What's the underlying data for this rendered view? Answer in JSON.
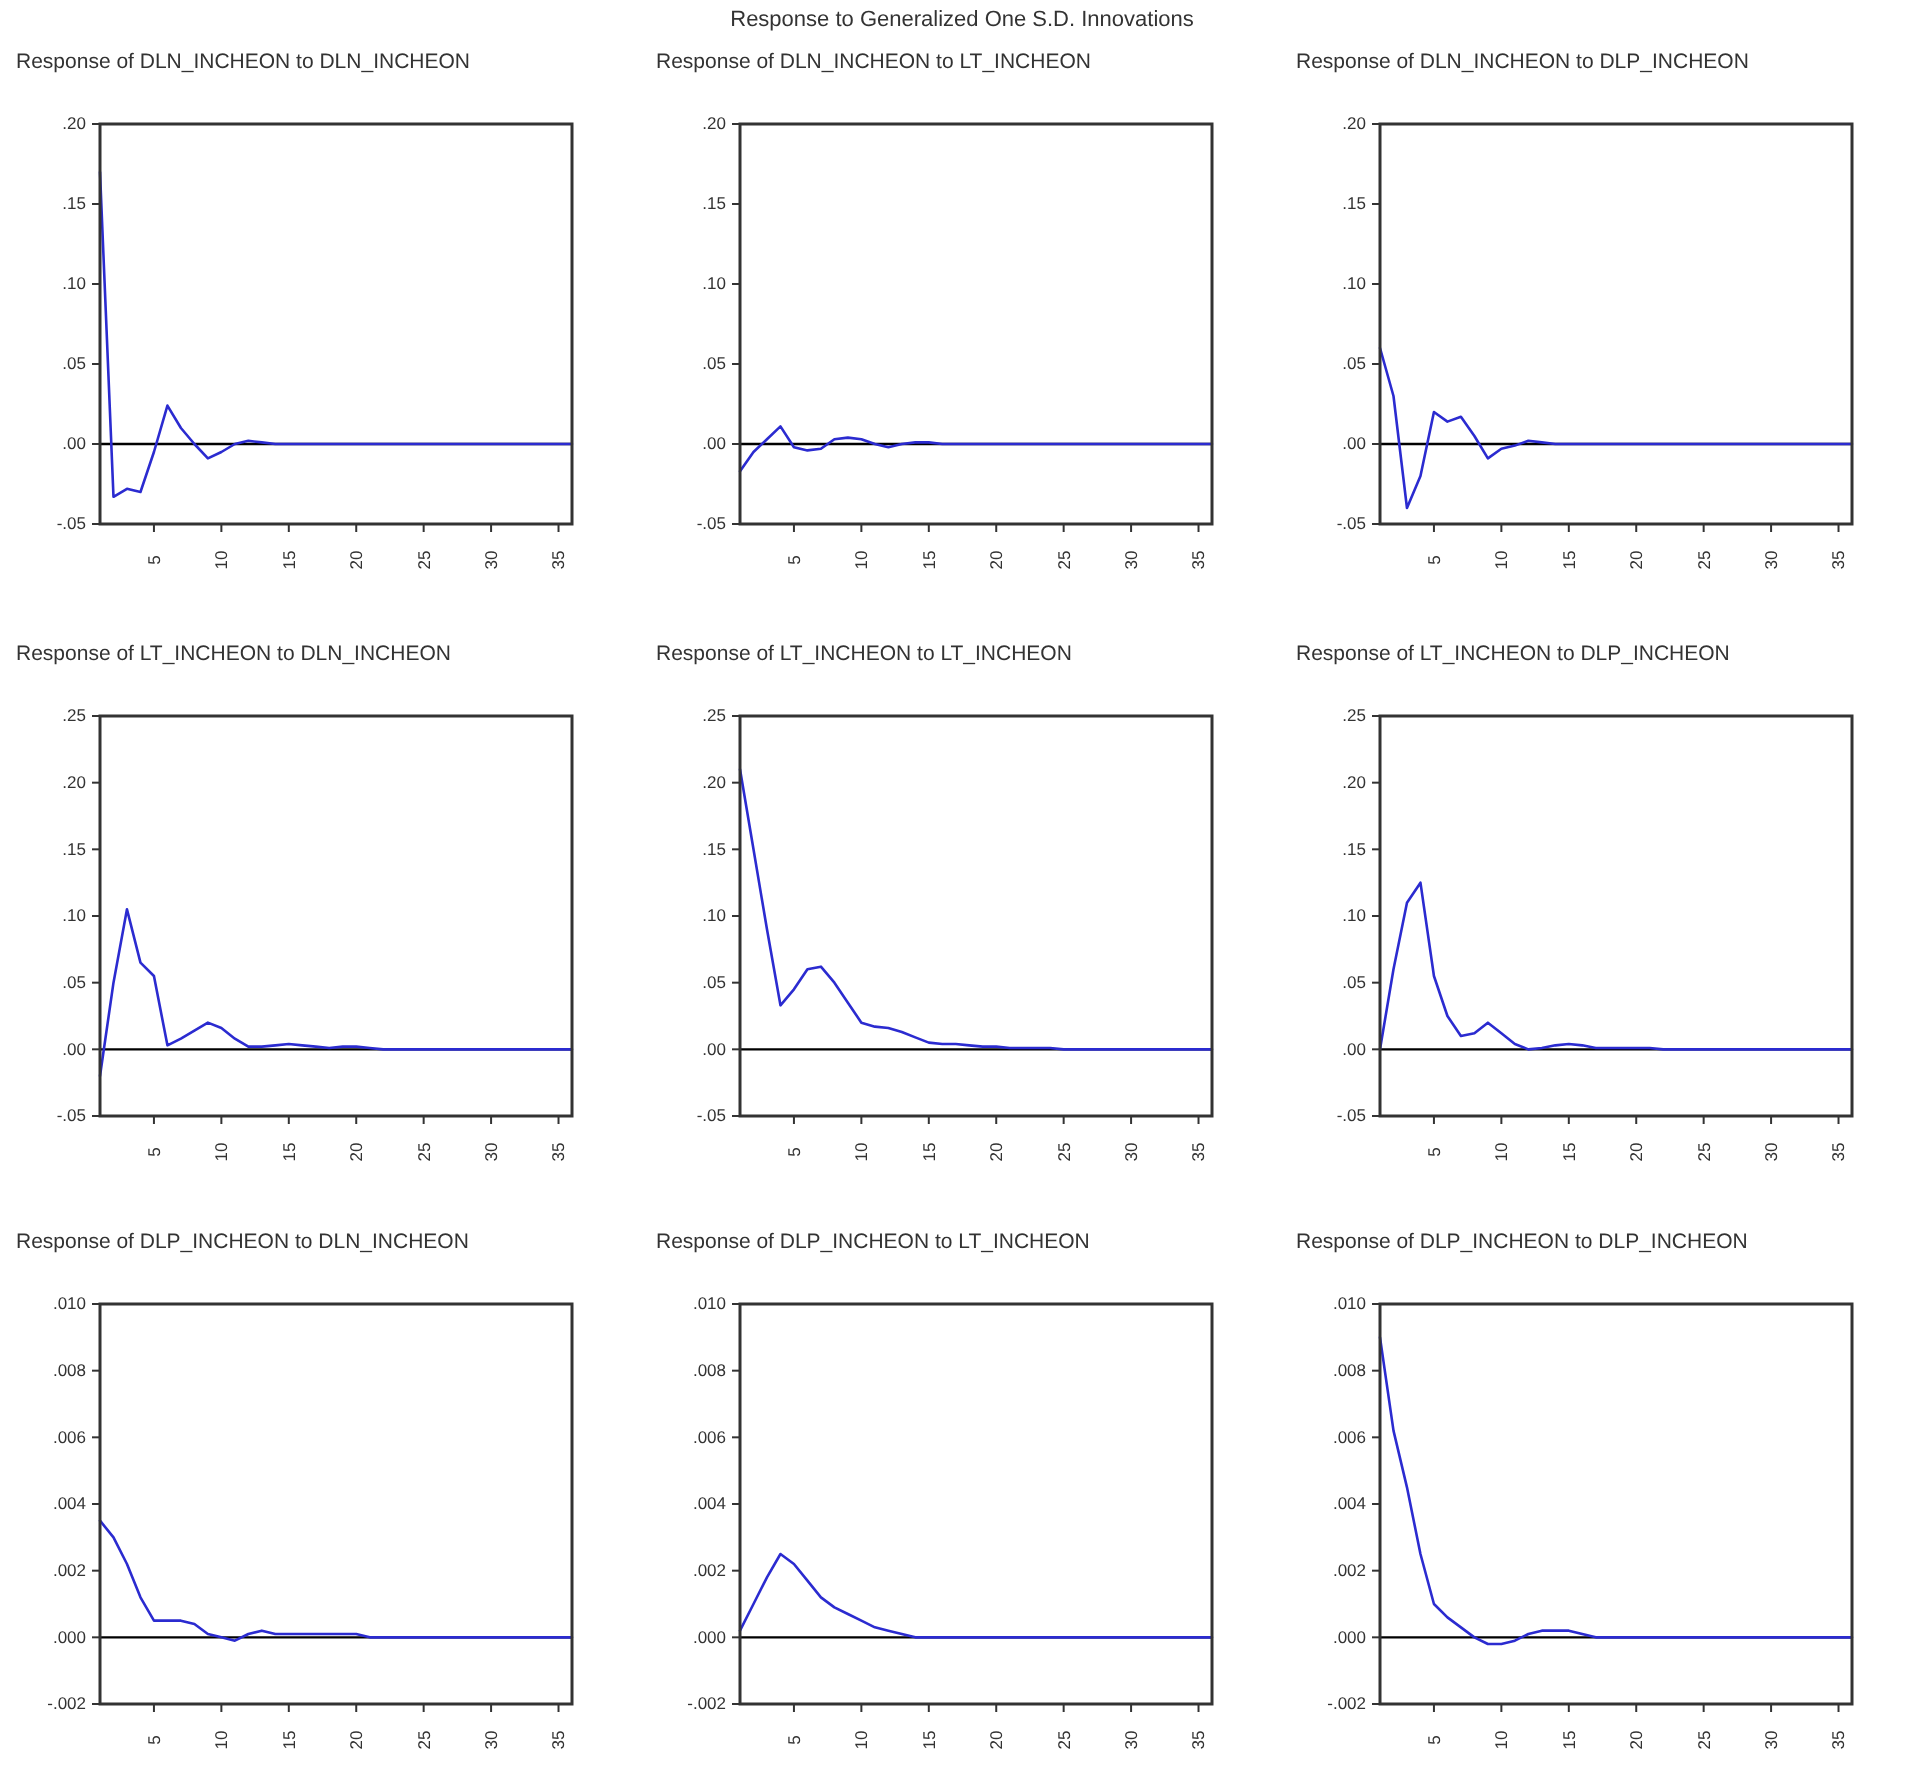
{
  "chart_data": [
    {
      "type": "line",
      "title": "Response of DLN_INCHEON to DLN_INCHEON",
      "annotations": [
        "Response to Generalized One S.D. Innovations"
      ],
      "x": [
        1,
        2,
        3,
        4,
        5,
        6,
        7,
        8,
        9,
        10,
        11,
        12,
        13,
        14,
        15,
        16,
        17,
        18,
        19,
        20,
        21,
        22,
        23,
        24,
        25,
        26,
        27,
        28,
        29,
        30,
        31,
        32,
        33,
        34,
        35,
        36
      ],
      "xlim": [
        1,
        36
      ],
      "xticks": [
        5,
        10,
        15,
        20,
        25,
        30,
        35
      ],
      "ylim": [
        -0.05,
        0.2
      ],
      "yticks": [
        {
          "value": -0.05,
          "label": "-.05"
        },
        {
          "value": 0,
          "label": ".00"
        },
        {
          "value": 0.05,
          "label": ".05"
        },
        {
          "value": 0.1,
          "label": ".10"
        },
        {
          "value": 0.15,
          "label": ".15"
        },
        {
          "value": 0.2,
          "label": ".20"
        }
      ],
      "ref_lines": [
        {
          "axis": "y",
          "value": 0,
          "color": "#000000"
        }
      ],
      "series": [
        {
          "color": "#2b2bd0",
          "values": [
            0.17,
            -0.033,
            -0.028,
            -0.03,
            -0.005,
            0.024,
            0.01,
            0.0,
            -0.009,
            -0.005,
            0.0,
            0.002,
            0.001,
            0,
            0,
            0,
            0,
            0,
            0,
            0,
            0,
            0,
            0,
            0,
            0,
            0,
            0,
            0,
            0,
            0,
            0,
            0,
            0,
            0,
            0,
            0
          ]
        }
      ]
    },
    {
      "type": "line",
      "title": "Response of DLN_INCHEON to LT_INCHEON",
      "x": [
        1,
        2,
        3,
        4,
        5,
        6,
        7,
        8,
        9,
        10,
        11,
        12,
        13,
        14,
        15,
        16,
        17,
        18,
        19,
        20,
        21,
        22,
        23,
        24,
        25,
        26,
        27,
        28,
        29,
        30,
        31,
        32,
        33,
        34,
        35,
        36
      ],
      "xlim": [
        1,
        36
      ],
      "xticks": [
        5,
        10,
        15,
        20,
        25,
        30,
        35
      ],
      "ylim": [
        -0.05,
        0.2
      ],
      "yticks": [
        {
          "value": -0.05,
          "label": "-.05"
        },
        {
          "value": 0,
          "label": ".00"
        },
        {
          "value": 0.05,
          "label": ".05"
        },
        {
          "value": 0.1,
          "label": ".10"
        },
        {
          "value": 0.15,
          "label": ".15"
        },
        {
          "value": 0.2,
          "label": ".20"
        }
      ],
      "ref_lines": [
        {
          "axis": "y",
          "value": 0,
          "color": "#000000"
        }
      ],
      "series": [
        {
          "color": "#2b2bd0",
          "values": [
            -0.017,
            -0.005,
            0.003,
            0.011,
            -0.002,
            -0.004,
            -0.003,
            0.003,
            0.004,
            0.003,
            0.0,
            -0.002,
            0,
            0.001,
            0.001,
            0,
            0,
            0,
            0,
            0,
            0,
            0,
            0,
            0,
            0,
            0,
            0,
            0,
            0,
            0,
            0,
            0,
            0,
            0,
            0,
            0
          ]
        }
      ]
    },
    {
      "type": "line",
      "title": "Response of DLN_INCHEON to DLP_INCHEON",
      "x": [
        1,
        2,
        3,
        4,
        5,
        6,
        7,
        8,
        9,
        10,
        11,
        12,
        13,
        14,
        15,
        16,
        17,
        18,
        19,
        20,
        21,
        22,
        23,
        24,
        25,
        26,
        27,
        28,
        29,
        30,
        31,
        32,
        33,
        34,
        35,
        36
      ],
      "xlim": [
        1,
        36
      ],
      "xticks": [
        5,
        10,
        15,
        20,
        25,
        30,
        35
      ],
      "ylim": [
        -0.05,
        0.2
      ],
      "yticks": [
        {
          "value": -0.05,
          "label": "-.05"
        },
        {
          "value": 0,
          "label": ".00"
        },
        {
          "value": 0.05,
          "label": ".05"
        },
        {
          "value": 0.1,
          "label": ".10"
        },
        {
          "value": 0.15,
          "label": ".15"
        },
        {
          "value": 0.2,
          "label": ".20"
        }
      ],
      "ref_lines": [
        {
          "axis": "y",
          "value": 0,
          "color": "#000000"
        }
      ],
      "series": [
        {
          "color": "#2b2bd0",
          "values": [
            0.06,
            0.03,
            -0.04,
            -0.02,
            0.02,
            0.014,
            0.017,
            0.005,
            -0.009,
            -0.003,
            -0.001,
            0.002,
            0.001,
            0,
            0,
            0,
            0,
            0,
            0,
            0,
            0,
            0,
            0,
            0,
            0,
            0,
            0,
            0,
            0,
            0,
            0,
            0,
            0,
            0,
            0,
            0
          ]
        }
      ]
    },
    {
      "type": "line",
      "title": "Response of LT_INCHEON to DLN_INCHEON",
      "x": [
        1,
        2,
        3,
        4,
        5,
        6,
        7,
        8,
        9,
        10,
        11,
        12,
        13,
        14,
        15,
        16,
        17,
        18,
        19,
        20,
        21,
        22,
        23,
        24,
        25,
        26,
        27,
        28,
        29,
        30,
        31,
        32,
        33,
        34,
        35,
        36
      ],
      "xlim": [
        1,
        36
      ],
      "xticks": [
        5,
        10,
        15,
        20,
        25,
        30,
        35
      ],
      "ylim": [
        -0.05,
        0.25
      ],
      "yticks": [
        {
          "value": -0.05,
          "label": "-.05"
        },
        {
          "value": 0,
          "label": ".00"
        },
        {
          "value": 0.05,
          "label": ".05"
        },
        {
          "value": 0.1,
          "label": ".10"
        },
        {
          "value": 0.15,
          "label": ".15"
        },
        {
          "value": 0.2,
          "label": ".20"
        },
        {
          "value": 0.25,
          "label": ".25"
        }
      ],
      "ref_lines": [
        {
          "axis": "y",
          "value": 0,
          "color": "#000000"
        }
      ],
      "series": [
        {
          "color": "#2b2bd0",
          "values": [
            -0.02,
            0.05,
            0.105,
            0.065,
            0.055,
            0.003,
            0.008,
            0.014,
            0.02,
            0.016,
            0.008,
            0.002,
            0.002,
            0.003,
            0.004,
            0.003,
            0.002,
            0.001,
            0.002,
            0.002,
            0.001,
            0,
            0,
            0,
            0,
            0,
            0,
            0,
            0,
            0,
            0,
            0,
            0,
            0,
            0,
            0
          ]
        }
      ]
    },
    {
      "type": "line",
      "title": "Response of LT_INCHEON to LT_INCHEON",
      "x": [
        1,
        2,
        3,
        4,
        5,
        6,
        7,
        8,
        9,
        10,
        11,
        12,
        13,
        14,
        15,
        16,
        17,
        18,
        19,
        20,
        21,
        22,
        23,
        24,
        25,
        26,
        27,
        28,
        29,
        30,
        31,
        32,
        33,
        34,
        35,
        36
      ],
      "xlim": [
        1,
        36
      ],
      "xticks": [
        5,
        10,
        15,
        20,
        25,
        30,
        35
      ],
      "ylim": [
        -0.05,
        0.25
      ],
      "yticks": [
        {
          "value": -0.05,
          "label": "-.05"
        },
        {
          "value": 0,
          "label": ".00"
        },
        {
          "value": 0.05,
          "label": ".05"
        },
        {
          "value": 0.1,
          "label": ".10"
        },
        {
          "value": 0.15,
          "label": ".15"
        },
        {
          "value": 0.2,
          "label": ".20"
        },
        {
          "value": 0.25,
          "label": ".25"
        }
      ],
      "ref_lines": [
        {
          "axis": "y",
          "value": 0,
          "color": "#000000"
        }
      ],
      "series": [
        {
          "color": "#2b2bd0",
          "values": [
            0.21,
            0.15,
            0.09,
            0.033,
            0.045,
            0.06,
            0.062,
            0.05,
            0.035,
            0.02,
            0.017,
            0.016,
            0.013,
            0.009,
            0.005,
            0.004,
            0.004,
            0.003,
            0.002,
            0.002,
            0.001,
            0.001,
            0.001,
            0.001,
            0,
            0,
            0,
            0,
            0,
            0,
            0,
            0,
            0,
            0,
            0,
            0
          ]
        }
      ]
    },
    {
      "type": "line",
      "title": "Response of LT_INCHEON to DLP_INCHEON",
      "x": [
        1,
        2,
        3,
        4,
        5,
        6,
        7,
        8,
        9,
        10,
        11,
        12,
        13,
        14,
        15,
        16,
        17,
        18,
        19,
        20,
        21,
        22,
        23,
        24,
        25,
        26,
        27,
        28,
        29,
        30,
        31,
        32,
        33,
        34,
        35,
        36
      ],
      "xlim": [
        1,
        36
      ],
      "xticks": [
        5,
        10,
        15,
        20,
        25,
        30,
        35
      ],
      "ylim": [
        -0.05,
        0.25
      ],
      "yticks": [
        {
          "value": -0.05,
          "label": "-.05"
        },
        {
          "value": 0,
          "label": ".00"
        },
        {
          "value": 0.05,
          "label": ".05"
        },
        {
          "value": 0.1,
          "label": ".10"
        },
        {
          "value": 0.15,
          "label": ".15"
        },
        {
          "value": 0.2,
          "label": ".20"
        },
        {
          "value": 0.25,
          "label": ".25"
        }
      ],
      "ref_lines": [
        {
          "axis": "y",
          "value": 0,
          "color": "#000000"
        }
      ],
      "series": [
        {
          "color": "#2b2bd0",
          "values": [
            0.0,
            0.06,
            0.11,
            0.125,
            0.055,
            0.025,
            0.01,
            0.012,
            0.02,
            0.012,
            0.004,
            0.0,
            0.001,
            0.003,
            0.004,
            0.003,
            0.001,
            0.001,
            0.001,
            0.001,
            0.001,
            0,
            0,
            0,
            0,
            0,
            0,
            0,
            0,
            0,
            0,
            0,
            0,
            0,
            0,
            0
          ]
        }
      ]
    },
    {
      "type": "line",
      "title": "Response of DLP_INCHEON to DLN_INCHEON",
      "x": [
        1,
        2,
        3,
        4,
        5,
        6,
        7,
        8,
        9,
        10,
        11,
        12,
        13,
        14,
        15,
        16,
        17,
        18,
        19,
        20,
        21,
        22,
        23,
        24,
        25,
        26,
        27,
        28,
        29,
        30,
        31,
        32,
        33,
        34,
        35,
        36
      ],
      "xlim": [
        1,
        36
      ],
      "xticks": [
        5,
        10,
        15,
        20,
        25,
        30,
        35
      ],
      "ylim": [
        -0.002,
        0.01
      ],
      "yticks": [
        {
          "value": -0.002,
          "label": "-.002"
        },
        {
          "value": 0,
          "label": ".000"
        },
        {
          "value": 0.002,
          "label": ".002"
        },
        {
          "value": 0.004,
          "label": ".004"
        },
        {
          "value": 0.006,
          "label": ".006"
        },
        {
          "value": 0.008,
          "label": ".008"
        },
        {
          "value": 0.01,
          "label": ".010"
        }
      ],
      "ref_lines": [
        {
          "axis": "y",
          "value": 0,
          "color": "#000000"
        }
      ],
      "series": [
        {
          "color": "#2b2bd0",
          "values": [
            0.0035,
            0.003,
            0.0022,
            0.0012,
            0.0005,
            0.0005,
            0.0005,
            0.0004,
            0.0001,
            0.0,
            -0.0001,
            0.0001,
            0.0002,
            0.0001,
            0.0001,
            0.0001,
            0.0001,
            0.0001,
            0.0001,
            0.0001,
            0,
            0,
            0,
            0,
            0,
            0,
            0,
            0,
            0,
            0,
            0,
            0,
            0,
            0,
            0,
            0
          ]
        }
      ]
    },
    {
      "type": "line",
      "title": "Response of DLP_INCHEON to LT_INCHEON",
      "x": [
        1,
        2,
        3,
        4,
        5,
        6,
        7,
        8,
        9,
        10,
        11,
        12,
        13,
        14,
        15,
        16,
        17,
        18,
        19,
        20,
        21,
        22,
        23,
        24,
        25,
        26,
        27,
        28,
        29,
        30,
        31,
        32,
        33,
        34,
        35,
        36
      ],
      "xlim": [
        1,
        36
      ],
      "xticks": [
        5,
        10,
        15,
        20,
        25,
        30,
        35
      ],
      "ylim": [
        -0.002,
        0.01
      ],
      "yticks": [
        {
          "value": -0.002,
          "label": "-.002"
        },
        {
          "value": 0,
          "label": ".000"
        },
        {
          "value": 0.002,
          "label": ".002"
        },
        {
          "value": 0.004,
          "label": ".004"
        },
        {
          "value": 0.006,
          "label": ".006"
        },
        {
          "value": 0.008,
          "label": ".008"
        },
        {
          "value": 0.01,
          "label": ".010"
        }
      ],
      "ref_lines": [
        {
          "axis": "y",
          "value": 0,
          "color": "#000000"
        }
      ],
      "series": [
        {
          "color": "#2b2bd0",
          "values": [
            0.0002,
            0.001,
            0.0018,
            0.0025,
            0.0022,
            0.0017,
            0.0012,
            0.0009,
            0.0007,
            0.0005,
            0.0003,
            0.0002,
            0.0001,
            0,
            0,
            0,
            0,
            0,
            0,
            0,
            0,
            0,
            0,
            0,
            0,
            0,
            0,
            0,
            0,
            0,
            0,
            0,
            0,
            0,
            0,
            0
          ]
        }
      ]
    },
    {
      "type": "line",
      "title": "Response of DLP_INCHEON to DLP_INCHEON",
      "x": [
        1,
        2,
        3,
        4,
        5,
        6,
        7,
        8,
        9,
        10,
        11,
        12,
        13,
        14,
        15,
        16,
        17,
        18,
        19,
        20,
        21,
        22,
        23,
        24,
        25,
        26,
        27,
        28,
        29,
        30,
        31,
        32,
        33,
        34,
        35,
        36
      ],
      "xlim": [
        1,
        36
      ],
      "xticks": [
        5,
        10,
        15,
        20,
        25,
        30,
        35
      ],
      "ylim": [
        -0.002,
        0.01
      ],
      "yticks": [
        {
          "value": -0.002,
          "label": "-.002"
        },
        {
          "value": 0,
          "label": ".000"
        },
        {
          "value": 0.002,
          "label": ".002"
        },
        {
          "value": 0.004,
          "label": ".004"
        },
        {
          "value": 0.006,
          "label": ".006"
        },
        {
          "value": 0.008,
          "label": ".008"
        },
        {
          "value": 0.01,
          "label": ".010"
        }
      ],
      "ref_lines": [
        {
          "axis": "y",
          "value": 0,
          "color": "#000000"
        }
      ],
      "series": [
        {
          "color": "#2b2bd0",
          "values": [
            0.009,
            0.0062,
            0.0045,
            0.0025,
            0.001,
            0.0006,
            0.0003,
            0.0,
            -0.0002,
            -0.0002,
            -0.0001,
            0.0001,
            0.0002,
            0.0002,
            0.0002,
            0.0001,
            0,
            0,
            0,
            0,
            0,
            0,
            0,
            0,
            0,
            0,
            0,
            0,
            0,
            0,
            0,
            0,
            0,
            0,
            0,
            0
          ]
        }
      ]
    }
  ]
}
